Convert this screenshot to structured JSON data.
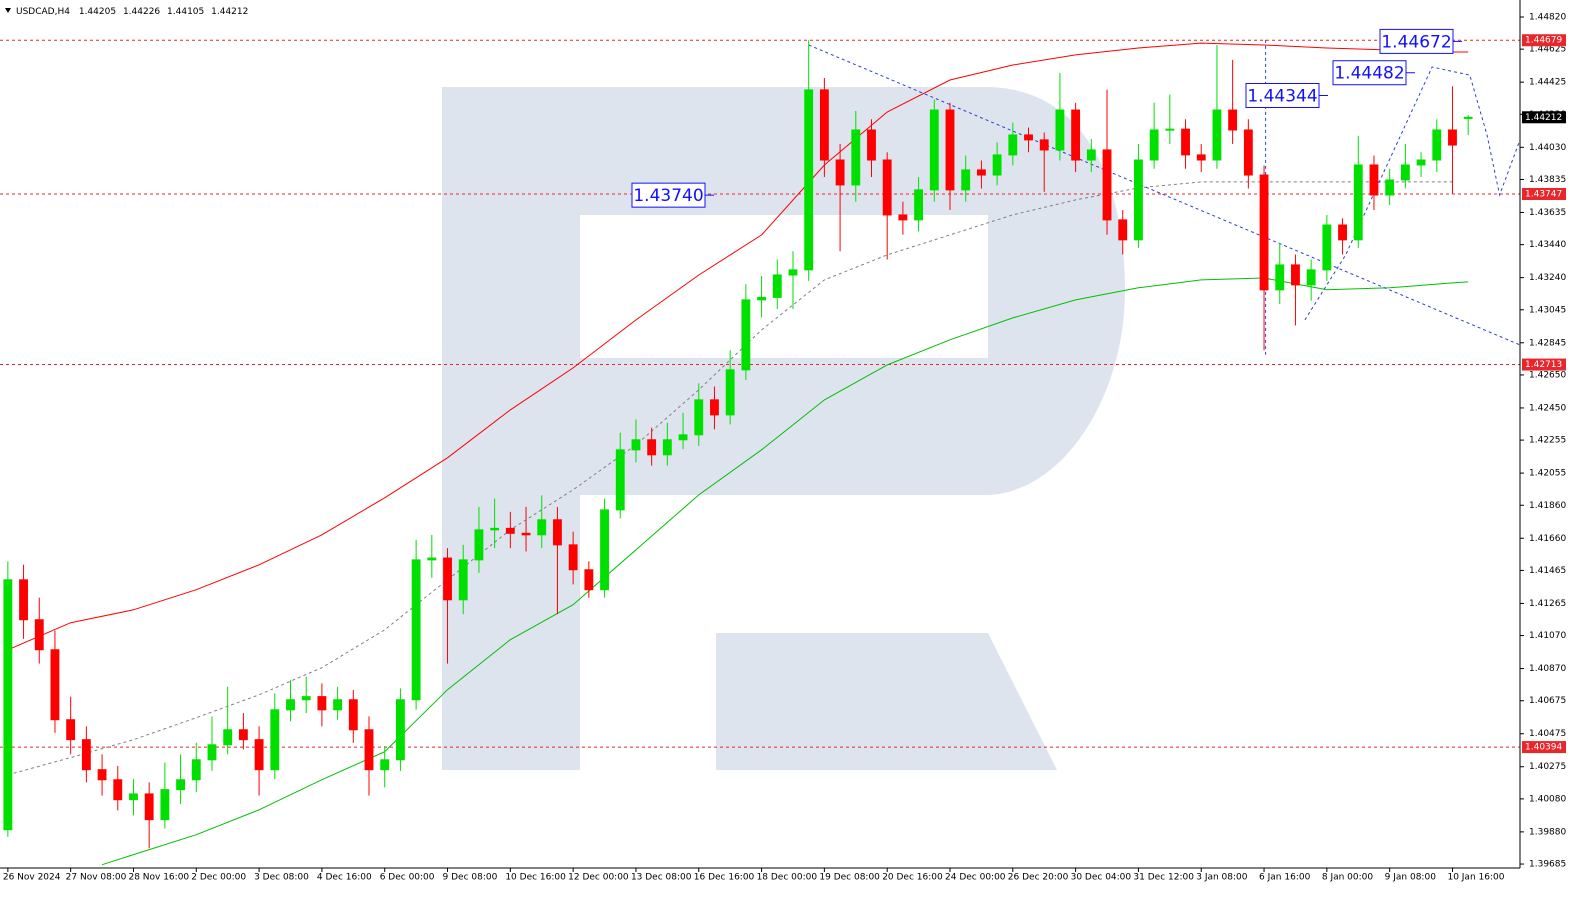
{
  "chart_data": {
    "type": "candlestick",
    "header": "USDCAD,H4",
    "xlim": [
      -0.5,
      96.3
    ],
    "ylim": [
      1.39661,
      1.44923
    ],
    "up_color": "#00e000",
    "down_color": "#ff0000",
    "xticks": [
      {
        "value": 0,
        "label": "26 Nov 2024"
      },
      {
        "value": 4,
        "label": "27 Nov 08:00"
      },
      {
        "value": 8,
        "label": "28 Nov 16:00"
      },
      {
        "value": 12,
        "label": "2 Dec 00:00"
      },
      {
        "value": 16,
        "label": "3 Dec 08:00"
      },
      {
        "value": 20,
        "label": "4 Dec 16:00"
      },
      {
        "value": 24,
        "label": "6 Dec 00:00"
      },
      {
        "value": 28,
        "label": "9 Dec 08:00"
      },
      {
        "value": 32,
        "label": "10 Dec 16:00"
      },
      {
        "value": 36,
        "label": "12 Dec 00:00"
      },
      {
        "value": 40,
        "label": "13 Dec 08:00"
      },
      {
        "value": 44,
        "label": "16 Dec 16:00"
      },
      {
        "value": 48,
        "label": "18 Dec 00:00"
      },
      {
        "value": 52,
        "label": "19 Dec 08:00"
      },
      {
        "value": 56,
        "label": "20 Dec 16:00"
      },
      {
        "value": 60,
        "label": "24 Dec 00:00"
      },
      {
        "value": 64,
        "label": "26 Dec 20:00"
      },
      {
        "value": 68,
        "label": "30 Dec 04:00"
      },
      {
        "value": 72,
        "label": "31 Dec 12:00"
      },
      {
        "value": 76,
        "label": "3 Jan 08:00"
      },
      {
        "value": 80,
        "label": "6 Jan 16:00"
      },
      {
        "value": 84,
        "label": "8 Jan 00:00"
      },
      {
        "value": 88,
        "label": "9 Jan 08:00"
      },
      {
        "value": 92,
        "label": "10 Jan 16:00"
      }
    ],
    "yticks": [
      {
        "value": 1.4482,
        "label": "1.44820"
      },
      1.44625,
      1.44425,
      {
        "value": 1.4423,
        "label": "1.44230"
      },
      {
        "value": 1.4403,
        "label": "1.44030"
      },
      1.43835,
      1.43635,
      {
        "value": 1.4344,
        "label": "1.43440"
      },
      {
        "value": 1.4324,
        "label": "1.43240"
      },
      1.43045,
      1.42845,
      {
        "value": 1.4265,
        "label": "1.42650"
      },
      {
        "value": 1.4245,
        "label": "1.42450"
      },
      1.42255,
      {
        "value": 1.42055,
        "label": "1.42055"
      },
      {
        "value": 1.4186,
        "label": "1.41860"
      },
      {
        "value": 1.4166,
        "label": "1.41660"
      },
      1.41465,
      1.41265,
      {
        "value": 1.4107,
        "label": "1.41070"
      },
      {
        "value": 1.4087,
        "label": "1.40870"
      },
      1.40675,
      1.40475,
      1.40275,
      {
        "value": 1.4008,
        "label": "1.40080"
      },
      {
        "value": 1.3988,
        "label": "1.39880"
      },
      1.39685
    ],
    "open": [
      1.39893,
      1.41408,
      1.41166,
      1.40984,
      1.4056,
      1.40439,
      1.40257,
      1.40196,
      1.40075,
      1.4011,
      1.39954,
      1.40136,
      1.40196,
      1.40317,
      1.40408,
      1.40499,
      1.40439,
      1.40257,
      1.4062,
      1.40681,
      1.407,
      1.4062,
      1.40681,
      1.40499,
      1.40257,
      1.40317,
      1.40681,
      1.41529,
      1.4154,
      1.41287,
      1.41529,
      1.41711,
      1.4172,
      1.4169,
      1.41681,
      1.41772,
      1.4162,
      1.41469,
      1.41348,
      1.41832,
      1.42196,
      1.42257,
      1.42166,
      1.42257,
      1.42287,
      1.42499,
      1.42408,
      1.42681,
      1.43105,
      1.4312,
      1.43256,
      1.43287,
      1.44378,
      1.43953,
      1.43802,
      1.44135,
      1.43953,
      1.4362,
      1.4359,
      1.43772,
      1.44256,
      1.43772,
      1.43893,
      1.43862,
      1.43984,
      1.44105,
      1.44075,
      1.44014,
      1.44256,
      1.43953,
      1.44014,
      1.4359,
      1.43469,
      1.43953,
      1.44135,
      1.4414,
      1.43984,
      1.43953,
      1.44256,
      1.44135,
      1.43862,
      1.43166,
      1.43317,
      1.43196,
      1.43287,
      1.43559,
      1.43469,
      1.43923,
      1.43741,
      1.43832,
      1.43923,
      1.43953,
      1.44135,
      1.44205
    ],
    "high": [
      1.4152,
      1.415,
      1.413,
      1.411,
      1.407,
      1.4052,
      1.4035,
      1.4028,
      1.402,
      1.4018,
      1.403,
      1.4035,
      1.4042,
      1.4058,
      1.4076,
      1.406,
      1.4052,
      1.4072,
      1.408,
      1.4082,
      1.4078,
      1.4076,
      1.4074,
      1.4058,
      1.404,
      1.4075,
      1.4165,
      1.4168,
      1.416,
      1.4162,
      1.4185,
      1.419,
      1.4182,
      1.4185,
      1.4192,
      1.4185,
      1.417,
      1.4152,
      1.419,
      1.423,
      1.4238,
      1.4233,
      1.4236,
      1.4242,
      1.426,
      1.4258,
      1.428,
      1.432,
      1.4325,
      1.4335,
      1.434,
      1.44679,
      1.4445,
      1.4405,
      1.4425,
      1.442,
      1.44,
      1.437,
      1.4385,
      1.4432,
      1.443,
      1.4398,
      1.4395,
      1.4406,
      1.4418,
      1.4415,
      1.4412,
      1.4448,
      1.443,
      1.4408,
      1.4438,
      1.4365,
      1.4405,
      1.443,
      1.4435,
      1.442,
      1.4405,
      1.4465,
      1.4456,
      1.442,
      1.4392,
      1.4345,
      1.4338,
      1.4335,
      1.4362,
      1.436,
      1.441,
      1.4398,
      1.439,
      1.4405,
      1.44,
      1.442,
      1.444,
      1.44226
    ],
    "low": [
      1.3985,
      1.4105,
      1.409,
      1.4048,
      1.4035,
      1.4018,
      1.401,
      1.4001,
      1.3998,
      1.3978,
      1.399,
      1.4005,
      1.4012,
      1.4025,
      1.4035,
      1.4038,
      1.401,
      1.402,
      1.4055,
      1.406,
      1.4052,
      1.4056,
      1.4042,
      1.401,
      1.4015,
      1.4025,
      1.4062,
      1.4142,
      1.409,
      1.412,
      1.4145,
      1.416,
      1.416,
      1.4158,
      1.416,
      1.412,
      1.4138,
      1.413,
      1.413,
      1.4178,
      1.4212,
      1.421,
      1.421,
      1.422,
      1.4222,
      1.4232,
      1.4235,
      1.4262,
      1.43,
      1.4305,
      1.4305,
      1.4322,
      1.4385,
      1.434,
      1.437,
      1.4385,
      1.4335,
      1.435,
      1.4352,
      1.437,
      1.4365,
      1.437,
      1.4378,
      1.438,
      1.4392,
      1.44,
      1.4376,
      1.4395,
      1.4388,
      1.4388,
      1.435,
      1.4338,
      1.4342,
      1.439,
      1.4405,
      1.439,
      1.4388,
      1.439,
      1.4405,
      1.4378,
      1.428,
      1.4308,
      1.4295,
      1.431,
      1.4322,
      1.4338,
      1.4342,
      1.4365,
      1.4368,
      1.4378,
      1.4385,
      1.4388,
      1.4375,
      1.44105
    ],
    "close": [
      1.41408,
      1.41166,
      1.40984,
      1.4056,
      1.40439,
      1.40257,
      1.40196,
      1.40075,
      1.4011,
      1.39954,
      1.40136,
      1.40196,
      1.40317,
      1.40408,
      1.40499,
      1.40439,
      1.40257,
      1.4062,
      1.40681,
      1.407,
      1.4062,
      1.40681,
      1.40499,
      1.40257,
      1.40317,
      1.40681,
      1.41529,
      1.4154,
      1.41287,
      1.41529,
      1.41711,
      1.4172,
      1.4169,
      1.41681,
      1.41772,
      1.4162,
      1.41469,
      1.41348,
      1.41832,
      1.42196,
      1.42257,
      1.42166,
      1.42257,
      1.42287,
      1.42499,
      1.42408,
      1.42681,
      1.43105,
      1.4312,
      1.43256,
      1.43287,
      1.44378,
      1.43953,
      1.43802,
      1.44135,
      1.43953,
      1.4362,
      1.4359,
      1.43772,
      1.44256,
      1.43772,
      1.43893,
      1.43862,
      1.43984,
      1.44105,
      1.44075,
      1.44014,
      1.44256,
      1.43953,
      1.44014,
      1.4359,
      1.43469,
      1.43953,
      1.44135,
      1.4414,
      1.43984,
      1.43953,
      1.44256,
      1.44135,
      1.43862,
      1.43166,
      1.43317,
      1.43196,
      1.43287,
      1.43559,
      1.43469,
      1.43923,
      1.43741,
      1.43832,
      1.43923,
      1.43953,
      1.44135,
      1.44044,
      1.44212
    ],
    "overlays": [
      {
        "color": "#ff0000",
        "dash": false,
        "x": [
          0,
          4,
          8,
          12,
          16,
          20,
          24,
          28,
          32,
          36,
          40,
          44,
          48,
          52,
          56,
          60,
          64,
          68,
          72,
          76,
          80,
          84,
          88,
          92,
          93
        ],
        "values": [
          1.40984,
          1.41148,
          1.41226,
          1.41348,
          1.41499,
          1.41681,
          1.41905,
          1.42148,
          1.42438,
          1.42693,
          1.42984,
          1.43256,
          1.43499,
          1.43923,
          1.44244,
          1.44438,
          1.44529,
          1.4459,
          1.44632,
          1.44662,
          1.4465,
          1.44632,
          1.4462,
          1.44608,
          1.44608
        ]
      },
      {
        "color": "#00c000",
        "dash": false,
        "x": [
          6,
          8,
          12,
          16,
          20,
          24,
          28,
          32,
          36,
          40,
          44,
          48,
          52,
          56,
          60,
          64,
          68,
          72,
          76,
          80,
          84,
          88,
          92,
          93
        ],
        "values": [
          1.39681,
          1.39742,
          1.39863,
          1.40014,
          1.40196,
          1.40366,
          1.40742,
          1.41045,
          1.41257,
          1.4159,
          1.41923,
          1.42196,
          1.42499,
          1.42711,
          1.42863,
          1.42996,
          1.43105,
          1.43178,
          1.43226,
          1.43238,
          1.43166,
          1.43178,
          1.43208,
          1.43214
        ]
      },
      {
        "color": "#808080",
        "dash": true,
        "x": [
          0,
          4,
          8,
          12,
          16,
          20,
          24,
          28,
          32,
          36,
          40,
          44,
          48,
          52,
          56,
          60,
          64,
          68,
          72,
          76,
          80,
          84,
          88,
          92
        ],
        "values": [
          1.40226,
          1.4033,
          1.40439,
          1.40572,
          1.40711,
          1.40875,
          1.41105,
          1.41408,
          1.41711,
          1.41954,
          1.42226,
          1.4256,
          1.42923,
          1.43226,
          1.43378,
          1.43499,
          1.4362,
          1.43711,
          1.43784,
          1.4382,
          1.4382,
          1.4382,
          1.4382,
          1.4382
        ]
      },
      {
        "color": "#2a3fd8",
        "dash": true,
        "x": [
          51,
          96.3
        ],
        "values": [
          1.4465,
          1.42832
        ]
      },
      {
        "color": "#2a3fd8",
        "dash": true,
        "x": [
          80.1,
          80.1
        ],
        "values": [
          1.44681,
          1.42772
        ]
      },
      {
        "color": "#2a3fd8",
        "dash": true,
        "x": [
          82.6,
          85.2,
          90.7,
          93.1,
          94.2,
          95.0,
          96.3
        ],
        "values": [
          1.42984,
          1.43378,
          1.44517,
          1.44468,
          1.44105,
          1.43741,
          1.44075
        ]
      }
    ],
    "levels": [
      1.44679,
      1.43747,
      1.42713,
      1.40394
    ],
    "level_color": "#e8262b",
    "annotations": [
      {
        "value": 1.4374,
        "label": "1.43740"
      },
      1.44344,
      1.44482,
      1.44672
    ],
    "annotation_color": "#1010ff"
  }
}
